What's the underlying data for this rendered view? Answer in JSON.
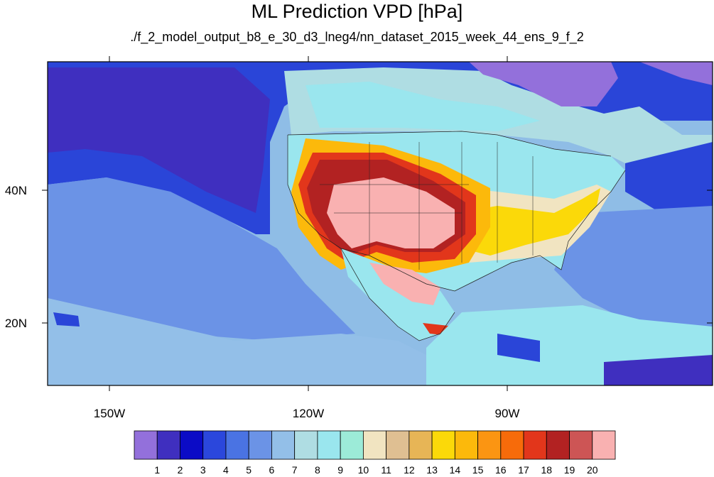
{
  "title": "ML Prediction VPD [hPa]",
  "subtitle": "./f_2_model_output_b8_e_30_d3_lneg4/nn_dataset_2015_week_44_ens_9_f_2",
  "axes": {
    "lon_labels": [
      "150W",
      "120W",
      "90W"
    ],
    "lat_labels": [
      "40N",
      "20N"
    ]
  },
  "colorbar": {
    "labels": [
      "1",
      "2",
      "3",
      "4",
      "5",
      "6",
      "7",
      "8",
      "9",
      "10",
      "11",
      "12",
      "13",
      "14",
      "15",
      "16",
      "17",
      "18",
      "19",
      "20"
    ],
    "colors": [
      "#9370db",
      "#3f2fbf",
      "#0b0bc6",
      "#2b47dc",
      "#4a73e3",
      "#6b93e6",
      "#93bfe8",
      "#afdde3",
      "#9ae6ee",
      "#9cebd8",
      "#f1e4c1",
      "#dfbf92",
      "#e7b556",
      "#fbd909",
      "#fcb90b",
      "#fb9512",
      "#f76b0a",
      "#e2361b",
      "#b22222",
      "#cd5555",
      "#f9b1b1"
    ]
  },
  "map_colors": {
    "ocean_deep": "#2a45d8",
    "ocean_mid": "#4a70e2",
    "ocean_light": "#93bfe8",
    "ocean_pale": "#8fbde6",
    "land_cool": "#6b93e6",
    "land_cyan": "#9ae6ee",
    "land_pale": "#afdde3",
    "land_tan": "#f1e4c1",
    "land_orange": "#fcb90b",
    "land_red": "#e2361b",
    "land_darkred": "#b22222",
    "land_pink": "#f9b1b1",
    "arctic_purple": "#9370db",
    "boundaries": "#202020"
  }
}
